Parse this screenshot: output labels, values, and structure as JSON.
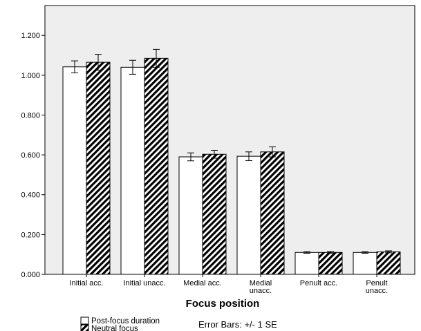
{
  "chart_data": {
    "type": "bar",
    "xlabel": "Focus position",
    "ylabel": "",
    "ylim": [
      0,
      1.35
    ],
    "yticks": [
      0,
      0.2,
      0.4,
      0.6,
      0.8,
      1.0,
      1.2
    ],
    "ytick_labels": [
      "0.000",
      "0.200",
      "0.400",
      "0.600",
      "0.800",
      "1.000",
      "1.200"
    ],
    "grid": false,
    "categories": [
      [
        "Initial acc."
      ],
      [
        "Initial unacc."
      ],
      [
        "Medial acc."
      ],
      [
        "Medial",
        "unacc."
      ],
      [
        "Penult acc."
      ],
      [
        "Penult",
        "unacc."
      ]
    ],
    "series": [
      {
        "name": "Post-focus duration",
        "fill": "white",
        "values": [
          1.042,
          1.04,
          0.59,
          0.593,
          0.11,
          0.11
        ],
        "errors": [
          0.03,
          0.035,
          0.02,
          0.022,
          0.004,
          0.004
        ]
      },
      {
        "name": "Neutral focus",
        "fill": "hatched",
        "values": [
          1.065,
          1.085,
          0.603,
          0.615,
          0.11,
          0.113
        ],
        "errors": [
          0.04,
          0.045,
          0.02,
          0.025,
          0.005,
          0.005
        ]
      }
    ],
    "legend_position": "bottom-left",
    "note": "Error Bars: +/- 1 SE",
    "colors": {
      "plot_background": "#eeeeee",
      "bar_fill": "#ffffff",
      "hatch": "#000000",
      "axis": "#000000"
    }
  }
}
